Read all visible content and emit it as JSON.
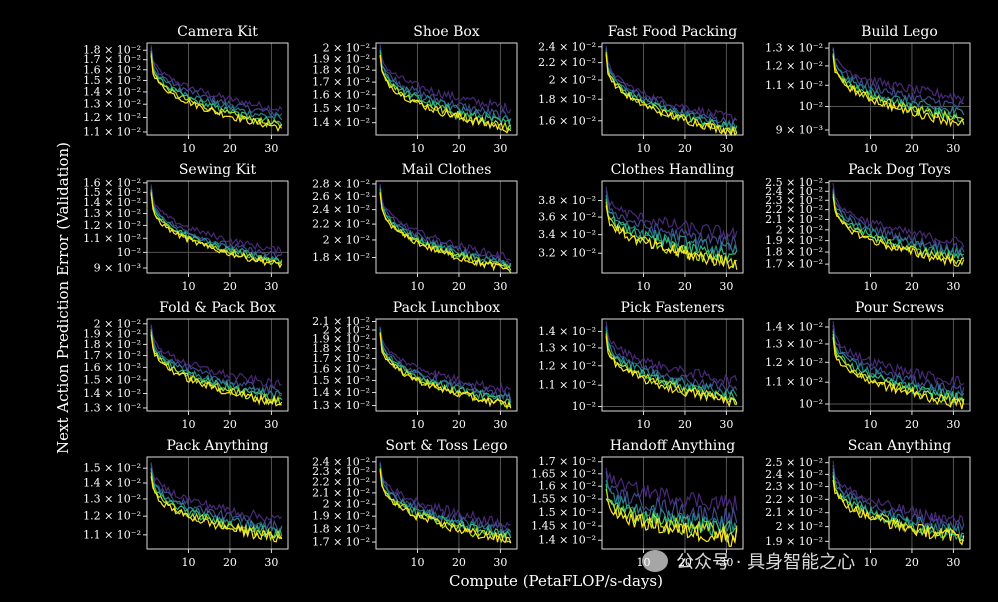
{
  "figure": {
    "ylabel": "Next Action Prediction Error (Validation)",
    "xlabel": "Compute (PetaFLOP/s-days)",
    "watermark": "公众号 · 具身智能之心",
    "colors": [
      "#482878",
      "#3e4989",
      "#26828e",
      "#35b779",
      "#b5de2b",
      "#fde725"
    ]
  },
  "chart_data": [
    {
      "type": "line",
      "title": "Camera Kit",
      "xticks": [
        10,
        20,
        30
      ],
      "xlim": [
        0,
        34
      ],
      "yscale": "log",
      "ylim": [
        0.0108,
        0.0188
      ],
      "ytick_values": [
        0.018,
        0.017,
        0.016,
        0.015,
        0.014,
        0.013,
        0.012,
        0.011
      ],
      "ytick_labels": [
        "1.8 × 10⁻²",
        "1.7 × 10⁻²",
        "1.6 × 10⁻²",
        "1.5 × 10⁻²",
        "1.4 × 10⁻²",
        "1.3 × 10⁻²",
        "1.2 × 10⁻²",
        "1.1 × 10⁻²"
      ],
      "start": [
        0.0185,
        0.0183,
        0.018,
        0.0178,
        0.0176,
        0.0174
      ],
      "end": [
        0.0126,
        0.0122,
        0.0119,
        0.0116,
        0.0114,
        0.0113
      ]
    },
    {
      "type": "line",
      "title": "Shoe Box",
      "xticks": [
        10,
        20,
        30
      ],
      "xlim": [
        0,
        34
      ],
      "yscale": "log",
      "ylim": [
        0.0132,
        0.0205
      ],
      "ytick_values": [
        0.02,
        0.019,
        0.018,
        0.017,
        0.016,
        0.015,
        0.014
      ],
      "ytick_labels": [
        "2 × 10⁻²",
        "1.9 × 10⁻²",
        "1.8 × 10⁻²",
        "1.7 × 10⁻²",
        "1.6 × 10⁻²",
        "1.5 × 10⁻²",
        "1.4 × 10⁻²"
      ],
      "start": [
        0.0203,
        0.0201,
        0.0199,
        0.0197,
        0.0195,
        0.0193
      ],
      "end": [
        0.015,
        0.0144,
        0.0141,
        0.0139,
        0.0137,
        0.0136
      ]
    },
    {
      "type": "line",
      "title": "Fast Food Packing",
      "xticks": [
        10,
        20,
        30
      ],
      "xlim": [
        0,
        34
      ],
      "yscale": "log",
      "ylim": [
        0.0148,
        0.0245
      ],
      "ytick_values": [
        0.024,
        0.022,
        0.02,
        0.018,
        0.016
      ],
      "ytick_labels": [
        "2.4 × 10⁻²",
        "2.2 × 10⁻²",
        "2 × 10⁻²",
        "1.8 × 10⁻²",
        "1.6 × 10⁻²"
      ],
      "start": [
        0.024,
        0.0238,
        0.0236,
        0.0234,
        0.0232,
        0.023
      ],
      "end": [
        0.0162,
        0.0158,
        0.0155,
        0.0153,
        0.0151,
        0.015
      ]
    },
    {
      "type": "line",
      "title": "Build Lego",
      "xticks": [
        10,
        20,
        30
      ],
      "xlim": [
        0,
        34
      ],
      "yscale": "log",
      "ylim": [
        0.0088,
        0.0133
      ],
      "ytick_values": [
        0.013,
        0.012,
        0.011,
        0.01,
        0.009
      ],
      "ytick_labels": [
        "1.3 × 10⁻²",
        "1.2 × 10⁻²",
        "1.1 × 10⁻²",
        "10⁻²",
        "9 × 10⁻³"
      ],
      "start": [
        0.0131,
        0.013,
        0.0129,
        0.0128,
        0.0127,
        0.0126
      ],
      "end": [
        0.0104,
        0.01,
        0.0097,
        0.0095,
        0.0094,
        0.0093
      ]
    },
    {
      "type": "line",
      "title": "Sewing Kit",
      "xticks": [
        10,
        20,
        30
      ],
      "xlim": [
        0,
        34
      ],
      "yscale": "log",
      "ylim": [
        0.0087,
        0.0162
      ],
      "ytick_values": [
        0.016,
        0.015,
        0.014,
        0.013,
        0.012,
        0.011,
        0.01,
        0.009
      ],
      "ytick_labels": [
        "1.6 × 10⁻²",
        "1.5 × 10⁻²",
        "1.4 × 10⁻²",
        "1.3 × 10⁻²",
        "1.2 × 10⁻²",
        "1.1 × 10⁻²",
        "10⁻²",
        "9 × 10⁻³"
      ],
      "start": [
        0.0158,
        0.0156,
        0.0154,
        0.0152,
        0.015,
        0.0148
      ],
      "end": [
        0.0101,
        0.0097,
        0.0095,
        0.0094,
        0.0093,
        0.0092
      ]
    },
    {
      "type": "line",
      "title": "Mail Clothes",
      "xticks": [
        10,
        20,
        30
      ],
      "xlim": [
        0,
        34
      ],
      "yscale": "log",
      "ylim": [
        0.0164,
        0.0285
      ],
      "ytick_values": [
        0.028,
        0.026,
        0.024,
        0.022,
        0.02,
        0.018
      ],
      "ytick_labels": [
        "2.8 × 10⁻²",
        "2.6 × 10⁻²",
        "2.4 × 10⁻²",
        "2.2 × 10⁻²",
        "2 × 10⁻²",
        "1.8 × 10⁻²"
      ],
      "start": [
        0.028,
        0.0277,
        0.0274,
        0.0271,
        0.0268,
        0.0265
      ],
      "end": [
        0.018,
        0.0175,
        0.0172,
        0.017,
        0.0168,
        0.0167
      ]
    },
    {
      "type": "line",
      "title": "Clothes Handling",
      "xticks": [
        10,
        20,
        30
      ],
      "xlim": [
        0,
        34
      ],
      "yscale": "log",
      "ylim": [
        0.03,
        0.0405
      ],
      "ytick_values": [
        0.038,
        0.036,
        0.034,
        0.032
      ],
      "ytick_labels": [
        "3.8 × 10⁻²",
        "3.6 × 10⁻²",
        "3.4 × 10⁻²",
        "3.2 × 10⁻²"
      ],
      "start": [
        0.0395,
        0.039,
        0.0386,
        0.0382,
        0.0378,
        0.0374
      ],
      "end": [
        0.034,
        0.033,
        0.0322,
        0.0316,
        0.0312,
        0.031
      ]
    },
    {
      "type": "line",
      "title": "Pack Dog Toys",
      "xticks": [
        10,
        20,
        30
      ],
      "xlim": [
        0,
        34
      ],
      "yscale": "log",
      "ylim": [
        0.0163,
        0.0252
      ],
      "ytick_values": [
        0.025,
        0.024,
        0.023,
        0.022,
        0.021,
        0.02,
        0.019,
        0.018,
        0.017
      ],
      "ytick_labels": [
        "2.5 × 10⁻²",
        "2.4 × 10⁻²",
        "2.3 × 10⁻²",
        "2.2 × 10⁻²",
        "2.1 × 10⁻²",
        "2 × 10⁻²",
        "1.9 × 10⁻²",
        "1.8 × 10⁻²",
        "1.7 × 10⁻²"
      ],
      "start": [
        0.0248,
        0.0245,
        0.0242,
        0.0239,
        0.0236,
        0.0233
      ],
      "end": [
        0.0188,
        0.0182,
        0.0178,
        0.0175,
        0.0173,
        0.0171
      ]
    },
    {
      "type": "line",
      "title": "Fold & Pack Box",
      "xticks": [
        10,
        20,
        30
      ],
      "xlim": [
        0,
        34
      ],
      "yscale": "log",
      "ylim": [
        0.0128,
        0.0205
      ],
      "ytick_values": [
        0.02,
        0.019,
        0.018,
        0.017,
        0.016,
        0.015,
        0.014,
        0.013
      ],
      "ytick_labels": [
        "2 × 10⁻²",
        "1.9 × 10⁻²",
        "1.8 × 10⁻²",
        "1.7 × 10⁻²",
        "1.6 × 10⁻²",
        "1.5 × 10⁻²",
        "1.4 × 10⁻²",
        "1.3 × 10⁻²"
      ],
      "start": [
        0.02,
        0.0198,
        0.0196,
        0.0194,
        0.0192,
        0.019
      ],
      "end": [
        0.0146,
        0.0141,
        0.0138,
        0.0136,
        0.0134,
        0.0133
      ]
    },
    {
      "type": "line",
      "title": "Pack Lunchbox",
      "xticks": [
        10,
        20,
        30
      ],
      "xlim": [
        0,
        34
      ],
      "yscale": "log",
      "ylim": [
        0.0126,
        0.0213
      ],
      "ytick_values": [
        0.021,
        0.02,
        0.019,
        0.018,
        0.017,
        0.016,
        0.015,
        0.014,
        0.013
      ],
      "ytick_labels": [
        "2.1 × 10⁻²",
        "2 × 10⁻²",
        "1.9 × 10⁻²",
        "1.8 × 10⁻²",
        "1.7 × 10⁻²",
        "1.6 × 10⁻²",
        "1.5 × 10⁻²",
        "1.4 × 10⁻²",
        "1.3 × 10⁻²"
      ],
      "start": [
        0.0205,
        0.0203,
        0.0201,
        0.0199,
        0.0197,
        0.0195
      ],
      "end": [
        0.0142,
        0.0137,
        0.0135,
        0.0133,
        0.0131,
        0.013
      ]
    },
    {
      "type": "line",
      "title": "Pick Fasteners",
      "xticks": [
        10,
        20,
        30
      ],
      "xlim": [
        0,
        34
      ],
      "yscale": "log",
      "ylim": [
        0.0098,
        0.0148
      ],
      "ytick_values": [
        0.014,
        0.013,
        0.012,
        0.011,
        0.01
      ],
      "ytick_labels": [
        "1.4 × 10⁻²",
        "1.3 × 10⁻²",
        "1.2 × 10⁻²",
        "1.1 × 10⁻²",
        "10⁻²"
      ],
      "start": [
        0.0146,
        0.0144,
        0.0142,
        0.014,
        0.0138,
        0.0136
      ],
      "end": [
        0.0112,
        0.0108,
        0.0106,
        0.0104,
        0.0103,
        0.0102
      ]
    },
    {
      "type": "line",
      "title": "Pour Screws",
      "xticks": [
        10,
        20,
        30
      ],
      "xlim": [
        0,
        34
      ],
      "yscale": "log",
      "ylim": [
        0.0097,
        0.0145
      ],
      "ytick_values": [
        0.014,
        0.013,
        0.012,
        0.011,
        0.01
      ],
      "ytick_labels": [
        "1.4 × 10⁻²",
        "1.3 × 10⁻²",
        "1.2 × 10⁻²",
        "1.1 × 10⁻²",
        "10⁻²"
      ],
      "start": [
        0.0143,
        0.0141,
        0.0139,
        0.0137,
        0.0135,
        0.0133
      ],
      "end": [
        0.011,
        0.0106,
        0.0104,
        0.0102,
        0.0101,
        0.01
      ]
    },
    {
      "type": "line",
      "title": "Pack Anything",
      "xticks": [
        10,
        20,
        30
      ],
      "xlim": [
        0,
        34
      ],
      "yscale": "log",
      "ylim": [
        0.0103,
        0.0158
      ],
      "ytick_values": [
        0.015,
        0.014,
        0.013,
        0.012,
        0.011
      ],
      "ytick_labels": [
        "1.5 × 10⁻²",
        "1.4 × 10⁻²",
        "1.3 × 10⁻²",
        "1.2 × 10⁻²",
        "1.1 × 10⁻²"
      ],
      "start": [
        0.0155,
        0.0153,
        0.0151,
        0.0149,
        0.0147,
        0.0145
      ],
      "end": [
        0.0118,
        0.0114,
        0.0112,
        0.011,
        0.0109,
        0.0108
      ]
    },
    {
      "type": "line",
      "title": "Sort & Toss Lego",
      "xticks": [
        10,
        20,
        30
      ],
      "xlim": [
        0,
        34
      ],
      "yscale": "log",
      "ylim": [
        0.0165,
        0.0245
      ],
      "ytick_values": [
        0.024,
        0.023,
        0.022,
        0.021,
        0.02,
        0.019,
        0.018,
        0.017
      ],
      "ytick_labels": [
        "2.4 × 10⁻²",
        "2.3 × 10⁻²",
        "2.2 × 10⁻²",
        "2.1 × 10⁻²",
        "2 × 10⁻²",
        "1.9 × 10⁻²",
        "1.8 × 10⁻²",
        "1.7 × 10⁻²"
      ],
      "start": [
        0.024,
        0.0238,
        0.0236,
        0.0234,
        0.0232,
        0.023
      ],
      "end": [
        0.0184,
        0.0179,
        0.0176,
        0.0174,
        0.0172,
        0.0171
      ]
    },
    {
      "type": "line",
      "title": "Handoff Anything",
      "xticks": [
        10,
        20,
        30
      ],
      "xlim": [
        0,
        34
      ],
      "yscale": "log",
      "ylim": [
        0.0137,
        0.0172
      ],
      "ytick_values": [
        0.017,
        0.0165,
        0.016,
        0.0155,
        0.015,
        0.0145,
        0.014
      ],
      "ytick_labels": [
        "1.7 × 10⁻²",
        "1.65 × 10⁻²",
        "1.6 × 10⁻²",
        "1.55 × 10⁻²",
        "1.5 × 10⁻²",
        "1.45 × 10⁻²",
        "1.4 × 10⁻²"
      ],
      "start": [
        0.0168,
        0.0165,
        0.0162,
        0.016,
        0.0158,
        0.0156
      ],
      "end": [
        0.0153,
        0.0148,
        0.0145,
        0.0143,
        0.0142,
        0.0141
      ]
    },
    {
      "type": "line",
      "title": "Scan Anything",
      "xticks": [
        10,
        20,
        30
      ],
      "xlim": [
        0,
        34
      ],
      "yscale": "log",
      "ylim": [
        0.0185,
        0.0255
      ],
      "ytick_values": [
        0.025,
        0.024,
        0.023,
        0.022,
        0.021,
        0.02,
        0.019
      ],
      "ytick_labels": [
        "2.5 × 10⁻²",
        "2.4 × 10⁻²",
        "2.3 × 10⁻²",
        "2.2 × 10⁻²",
        "2.1 × 10⁻²",
        "2 × 10⁻²",
        "1.9 × 10⁻²"
      ],
      "start": [
        0.0252,
        0.0249,
        0.0246,
        0.0243,
        0.024,
        0.0237
      ],
      "end": [
        0.0203,
        0.0199,
        0.0196,
        0.0194,
        0.0193,
        0.0192
      ]
    }
  ]
}
